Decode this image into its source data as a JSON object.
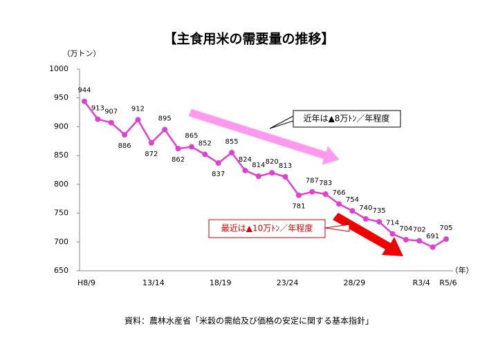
{
  "chart_data": {
    "type": "line",
    "title": "【主食用米の需要量の推移】",
    "y_label": "（万トン）",
    "x_label": "（年）",
    "categories": [
      "H8/9",
      null,
      null,
      null,
      null,
      "13/14",
      null,
      null,
      null,
      null,
      "18/19",
      null,
      null,
      null,
      null,
      "23/24",
      null,
      null,
      null,
      null,
      "28/29",
      null,
      null,
      null,
      null,
      "R3/4",
      null,
      "R5/6"
    ],
    "series": [
      {
        "name": "主食用米の需要量",
        "color": "#e040d0",
        "values": [
          944,
          913,
          907,
          886,
          912,
          872,
          895,
          862,
          865,
          852,
          837,
          855,
          824,
          814,
          820,
          813,
          781,
          787,
          783,
          766,
          754,
          740,
          735,
          714,
          704,
          702,
          691,
          705
        ]
      }
    ],
    "ylim": [
      650,
      1000
    ],
    "yticks": [
      650,
      700,
      750,
      800,
      850,
      900,
      950,
      1000
    ],
    "grid": false,
    "annotations": [
      "近年は▲8万ﾄﾝ／年程度",
      "最近は▲10万ﾄﾝ／年程度"
    ],
    "source": "資料：農林水産省「米穀の需給及び価格の安定に関する基本指針」"
  }
}
